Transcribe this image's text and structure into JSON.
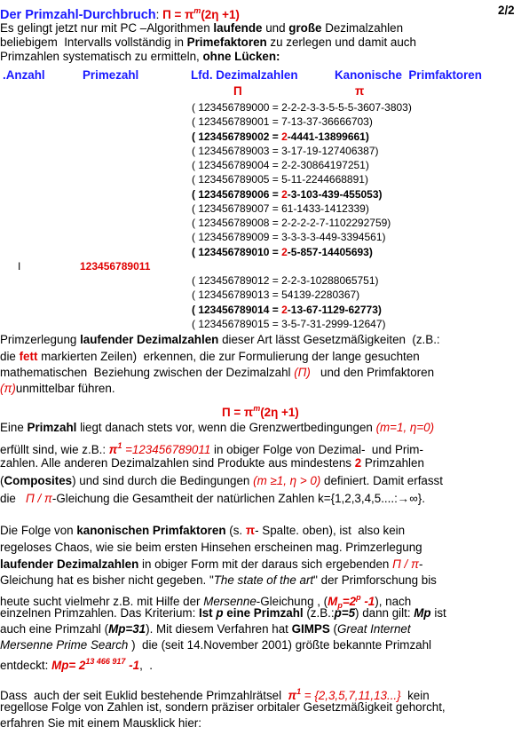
{
  "header": {
    "segments": [
      {
        "text": "Der Primzahl-Durchbruch",
        "style": "title"
      },
      ": ",
      {
        "text": "Π = π",
        "style": "rb"
      },
      {
        "text": "m",
        "style": "sup"
      },
      {
        "text": "(2η +1)",
        "style": "rb"
      }
    ],
    "page": "2/2"
  },
  "intro": [
    [
      "Es gelingt jetzt nur mit PC –Algorithmen ",
      {
        "text": "laufende",
        "style": "b"
      },
      " und ",
      {
        "text": "große",
        "style": "b"
      },
      " Dezimalzahlen"
    ],
    [
      "beliebigem  Intervalls vollständig in ",
      {
        "text": "Primefaktoren",
        "style": "b"
      },
      " zu zerlegen und damit auch"
    ],
    [
      "Primzahlen systematisch zu ermitteln, ",
      {
        "text": "ohne Lücken:",
        "style": "b"
      }
    ]
  ],
  "table": {
    "headers": [
      ".Anzahl",
      "Primezahl",
      "Lfd. Dezimalzahlen",
      "Kanonische  Primfaktoren"
    ],
    "symbols": [
      "Π",
      "π"
    ],
    "rows": [
      [
        "( 123456789000 = 2-2-2-3-3-5-5-5-3607-3803)"
      ],
      [
        "( 123456789001 = 7-13-37-36666703)"
      ],
      [
        {
          "text": "( 123456789002 = ",
          "style": "b"
        },
        {
          "text": "2",
          "style": "rb"
        },
        {
          "text": "-4441-13899661)",
          "style": "b"
        }
      ],
      [
        "( 123456789003 = 3-17-19-127406387)"
      ],
      [
        "( 123456789004 = 2-2-30864197251)"
      ],
      [
        "( 123456789005 = 5-11-2244668891)"
      ],
      [
        {
          "text": "( 123456789006 = ",
          "style": "b"
        },
        {
          "text": "2",
          "style": "rb"
        },
        {
          "text": "-3-103-439-455053)",
          "style": "b"
        }
      ],
      [
        "( 123456789007 = 61-1433-1412339)"
      ],
      [
        "( 123456789008 = 2-2-2-2-7-1102292759)"
      ],
      [
        "( 123456789009 = 3-3-3-3-449-3394561)"
      ],
      [
        {
          "text": "( 123456789010 = ",
          "style": "b"
        },
        {
          "text": "2",
          "style": "rb"
        },
        {
          "text": "-5-857-14405693)",
          "style": "b"
        }
      ],
      [
        "( 123456789012 = 2-2-3-10288065751)"
      ],
      [
        "( 123456789013 = 54139-2280367)"
      ],
      [
        {
          "text": "( 123456789014 = ",
          "style": "b"
        },
        {
          "text": "2",
          "style": "rb"
        },
        {
          "text": "-13-67-1129-62773)",
          "style": "b"
        }
      ],
      [
        "( 123456789015 = 3-5-7-31-2999-12647)"
      ]
    ],
    "prime_row": {
      "marker": "I",
      "number": "123456789011"
    }
  },
  "paragraph_2": [
    [
      "Primzerlegung ",
      {
        "text": "laufender Dezimalzahlen",
        "style": "b"
      },
      " dieser Art lässt Gesetzmäßigkeiten  (z.B.:"
    ],
    [
      "die ",
      {
        "text": "fett",
        "style": "rb"
      },
      " markierten Zeilen)  erkennen, die zur Formulierung der lange gesuchten"
    ],
    [
      "mathematischen  Beziehung zwischen der Dezimalzahl ",
      {
        "text": "(Π)",
        "style": "ri"
      },
      "   und den Primfaktoren"
    ],
    [
      {
        "text": "(π)",
        "style": "ri"
      },
      "unmittelbar führen."
    ]
  ],
  "formula": [
    {
      "text": "Π = π",
      "style": "rb"
    },
    {
      "text": "m",
      "style": "sup"
    },
    {
      "text": "(2η +1)",
      "style": "rb"
    }
  ],
  "paragraph_3": [
    [
      "Eine ",
      {
        "text": "Primzahl",
        "style": "b"
      },
      " liegt danach stets vor, wenn die Grenzwertbedingungen ",
      {
        "text": "(m=1, η=0)",
        "style": "ri"
      }
    ],
    [
      "erfüllt sind, wie z.B.: ",
      {
        "text": "π",
        "style": "rbi"
      },
      {
        "text": "1",
        "style": "sup"
      },
      {
        "text": " =123456789011",
        "style": "ri"
      },
      " in obiger Folge von Dezimal-  und Prim-"
    ],
    [
      "zahlen. Alle anderen Dezimalzahlen sind Produkte aus mindestens ",
      {
        "text": "2",
        "style": "rb"
      },
      " Primzahlen"
    ],
    [
      "(",
      {
        "text": "Composites",
        "style": "b"
      },
      ") und sind durch die Bedingungen ",
      {
        "text": "(m ≥1, η > 0)",
        "style": "ri"
      },
      " definiert. Damit erfasst"
    ],
    [
      "die   ",
      {
        "text": "Π / π",
        "style": "ri"
      },
      "-Gleichung die Gesamtheit der natürlichen Zahlen k={1,2,3,4,5....:→∞}."
    ]
  ],
  "paragraph_4": [
    [
      "Die Folge von ",
      {
        "text": "kanonischen Primfaktoren",
        "style": "b"
      },
      " (s. ",
      {
        "text": "π",
        "style": "rb"
      },
      "- Spalte. oben), ist  also kein"
    ],
    [
      "regeloses Chaos, wie sie beim ersten Hinsehen erscheinen mag. Primzerlegung"
    ],
    [
      {
        "text": "laufender Dezimalzahlen",
        "style": "b"
      },
      " in obiger Form mit der daraus sich ergebenden ",
      {
        "text": "Π / π",
        "style": "ri"
      },
      "-"
    ],
    [
      "Gleichung hat es bisher nicht gegeben. \"",
      {
        "text": "The state of the art",
        "style": "i"
      },
      "\" der Primforschung bis"
    ],
    [
      "heute sucht vielmehr z.B. mit Hilfe der ",
      {
        "text": "Mersenne",
        "style": "i"
      },
      "-Gleichung , (",
      {
        "text": "M",
        "style": "rbi"
      },
      {
        "text": "p",
        "style": "sub"
      },
      {
        "text": "=2",
        "style": "rbi"
      },
      {
        "text": "p",
        "style": "sup"
      },
      {
        "text": " -1",
        "style": "rbi"
      },
      "), nach"
    ],
    [
      "einzelnen Primzahlen. Das Kriterium: ",
      {
        "text": "Ist ",
        "style": "b"
      },
      {
        "text": "p",
        "style": "bi"
      },
      {
        "text": " eine Primzahl",
        "style": "b"
      },
      " (z.B.:",
      {
        "text": "p=5",
        "style": "bi"
      },
      ") dann gilt: ",
      {
        "text": "Mp",
        "style": "bi"
      },
      " ist"
    ],
    [
      "auch eine Primzahl (",
      {
        "text": "Mp=31",
        "style": "bi"
      },
      "). Mit diesem Verfahren hat ",
      {
        "text": "GIMPS",
        "style": "b"
      },
      " (",
      {
        "text": "Great Internet",
        "style": "i"
      }
    ],
    [
      {
        "text": "Mersenne Prime Search",
        "style": "i"
      },
      " )  die (seit 14.November 2001) größte bekannte Primzahl"
    ],
    [
      "entdeckt: ",
      {
        "text": "Mp= 2",
        "style": "rbi"
      },
      {
        "text": "13 466 917",
        "style": "sup"
      },
      {
        "text": " -1",
        "style": "rbi"
      },
      ",  ."
    ]
  ],
  "paragraph_5": [
    [
      "Dass  auch der seit Euklid bestehende Primzahlrätsel  ",
      {
        "text": "π",
        "style": "rbi"
      },
      {
        "text": "1",
        "style": "sup"
      },
      {
        "text": " = {2,3,5,7,11,13...}",
        "style": "ri"
      },
      "  kein"
    ],
    [
      "regellose Folge von Zahlen ist, sondern präziser orbitaler Gesetzmäßigkeit gehorcht,"
    ],
    [
      "erfahren Sie mit einem Mausklick hier:"
    ]
  ]
}
